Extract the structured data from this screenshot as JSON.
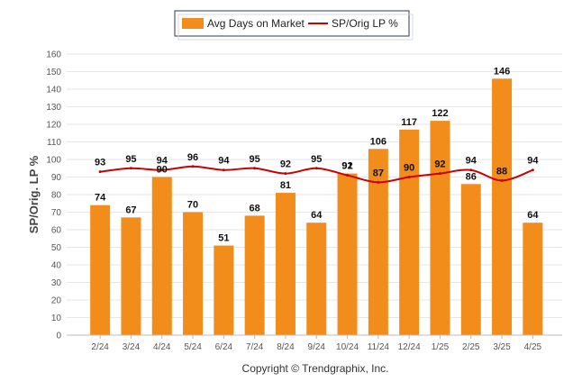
{
  "chart_data": {
    "type": "bar",
    "categories": [
      "2/24",
      "3/24",
      "4/24",
      "5/24",
      "6/24",
      "7/24",
      "8/24",
      "9/24",
      "10/24",
      "11/24",
      "12/24",
      "1/25",
      "2/25",
      "3/25",
      "4/25"
    ],
    "series": [
      {
        "name": "Avg Days on Market",
        "type": "bar",
        "color": "#f28c1b",
        "values": [
          74,
          67,
          90,
          70,
          51,
          68,
          81,
          64,
          92,
          106,
          117,
          122,
          86,
          146,
          64
        ],
        "labels": [
          "74",
          "67",
          "90",
          "70",
          "51",
          "68",
          "81",
          "64",
          "92",
          "106",
          "117",
          "122",
          "86",
          "146",
          "64"
        ]
      },
      {
        "name": "SP/Orig LP %",
        "type": "line",
        "color": "#cc0000",
        "values": [
          93,
          95,
          94,
          96,
          94,
          95,
          92,
          95,
          91,
          87,
          90,
          92,
          94,
          88,
          94
        ],
        "labels": [
          "93",
          "95",
          "94",
          "96",
          "94",
          "95",
          "92",
          "95",
          "91",
          "87",
          "90",
          "92",
          "94",
          "88",
          "94"
        ]
      }
    ],
    "ylabel": "SP/Orig. LP %",
    "ylim": [
      0,
      160
    ],
    "yticks": [
      "0",
      "10",
      "20",
      "30",
      "40",
      "50",
      "60",
      "70",
      "80",
      "90",
      "100",
      "110",
      "120",
      "130",
      "140",
      "150",
      "160"
    ],
    "grid": true,
    "legend_position": "top-center",
    "credit": "Copyright © Trendgraphix, Inc."
  }
}
